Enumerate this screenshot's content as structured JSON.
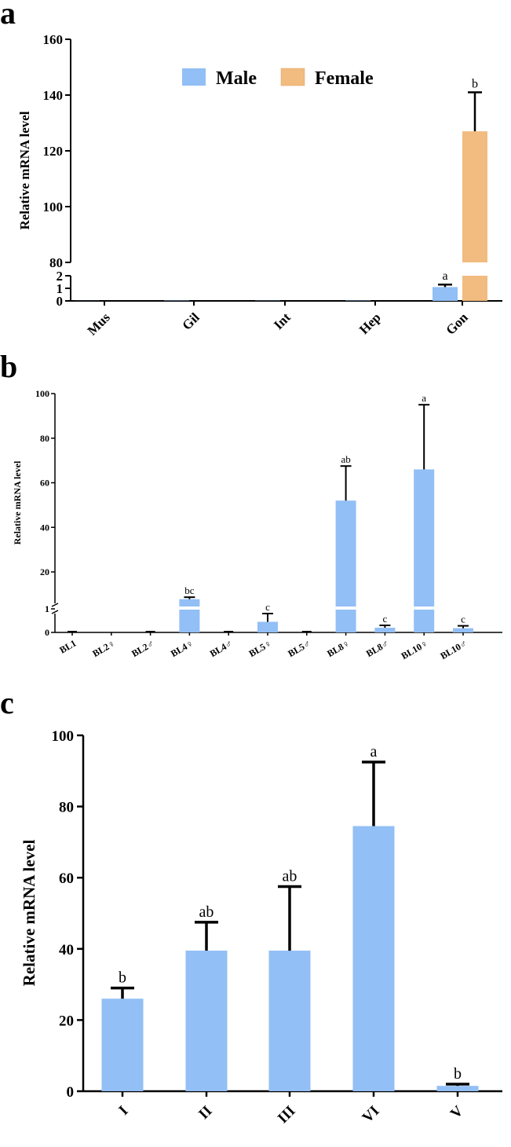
{
  "colors": {
    "male": "#92BFF5",
    "female": "#F2BB7F",
    "axis": "#000000"
  },
  "chart_data": [
    {
      "panel": "a",
      "type": "bar",
      "ylabel": "Relative mRNA level",
      "broken_axis": {
        "lower": [
          0,
          2
        ],
        "upper": [
          80,
          160
        ]
      },
      "lower_ticks": [
        "0",
        "1",
        "2"
      ],
      "upper_ticks": [
        "80",
        "100",
        "120",
        "140",
        "160"
      ],
      "categories": [
        "Mus",
        "Gil",
        "Int",
        "Hep",
        "Gon"
      ],
      "legend": {
        "placement": "top-center",
        "entries": [
          "Male",
          "Female"
        ]
      },
      "series": [
        {
          "name": "Male",
          "values": [
            0.01,
            0.03,
            0.02,
            0.03,
            1.1
          ],
          "errors": [
            0,
            0,
            0,
            0,
            0.2
          ],
          "labels": [
            "",
            "",
            "",
            "",
            "a"
          ]
        },
        {
          "name": "Female",
          "values": [
            0,
            0,
            0,
            0,
            127
          ],
          "errors": [
            0,
            0,
            0,
            0,
            14
          ],
          "labels": [
            "",
            "",
            "",
            "",
            "b"
          ]
        }
      ]
    },
    {
      "panel": "b",
      "type": "bar",
      "ylabel": "Relative mRNA level",
      "broken_axis": {
        "lower": [
          0,
          1
        ],
        "upper": [
          1,
          100
        ]
      },
      "lower_ticks": [
        "0",
        "1"
      ],
      "upper_ticks": [
        "20",
        "40",
        "60",
        "80",
        "100"
      ],
      "categories": [
        "BL1",
        "BL2♀",
        "BL2♂",
        "BL4♀",
        "BL4♂",
        "BL5♀",
        "BL5♂",
        "BL8♀",
        "BL8♂",
        "BL10♀",
        "BL10♂"
      ],
      "values": [
        0.03,
        0,
        0.02,
        6,
        0.05,
        0.45,
        0.02,
        52,
        0.2,
        66,
        0.18
      ],
      "errors": [
        0,
        0,
        0,
        1,
        0,
        0.35,
        0,
        15.5,
        0.1,
        29,
        0.1
      ],
      "labels": [
        "",
        "",
        "",
        "bc",
        "",
        "c",
        "",
        "ab",
        "c",
        "a",
        "c"
      ]
    },
    {
      "panel": "c",
      "type": "bar",
      "ylabel": "Relative mRNA level",
      "ylim": [
        0,
        100
      ],
      "ticks": [
        "0",
        "20",
        "40",
        "60",
        "80",
        "100"
      ],
      "categories": [
        "I",
        "II",
        "III",
        "VI",
        "V"
      ],
      "values": [
        26,
        39.5,
        39.5,
        74.5,
        1.5
      ],
      "errors": [
        3,
        8,
        18,
        18,
        0.5
      ],
      "labels": [
        "b",
        "ab",
        "ab",
        "a",
        "b"
      ]
    }
  ]
}
